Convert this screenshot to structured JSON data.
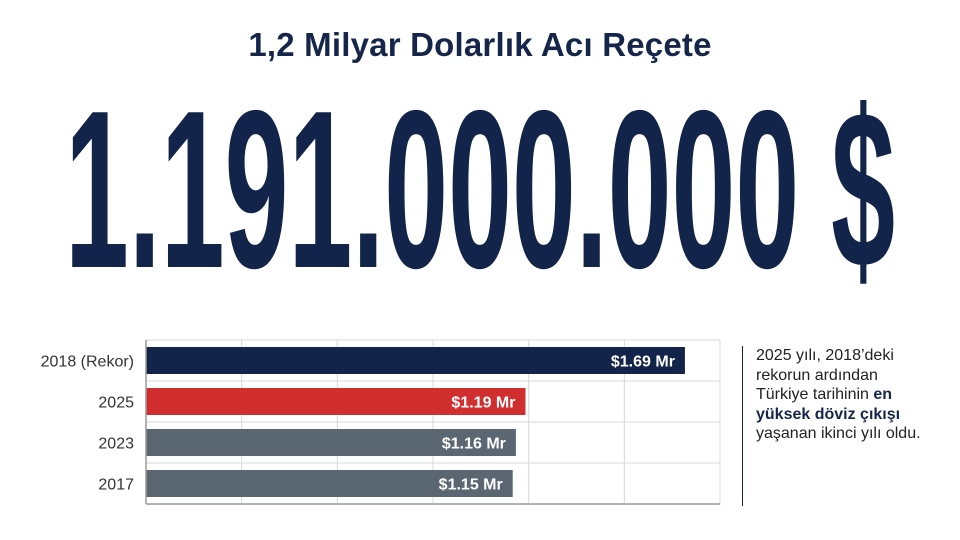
{
  "title": "1,2 Milyar Dolarlık Acı Reçete",
  "headline_amount": "1.191.000.000 $",
  "colors": {
    "navy": "#13244a",
    "red": "#d12f2f",
    "slate": "#5a6772",
    "grid": "#d8d8d8"
  },
  "chart_data": {
    "type": "bar",
    "orientation": "horizontal",
    "categories": [
      "2018 (Rekor)",
      "2025",
      "2023",
      "2017"
    ],
    "values": [
      1.69,
      1.19,
      1.16,
      1.15
    ],
    "value_labels": [
      "$1.69 Mr",
      "$1.19 Mr",
      "$1.16 Mr",
      "$1.15 Mr"
    ],
    "bar_colors": [
      "#13244a",
      "#d12f2f",
      "#5a6772",
      "#5a6772"
    ],
    "xlim": [
      0,
      1.8
    ],
    "grid": true
  },
  "note": {
    "line1": "2025 yılı, 2018’deki",
    "line2": "rekorun ardından",
    "line3_a": "Türkiye tarihinin ",
    "line3_b": "en",
    "line4_b": "yüksek döviz çıkışı",
    "line5": "yaşanan ikinci yılı oldu."
  }
}
